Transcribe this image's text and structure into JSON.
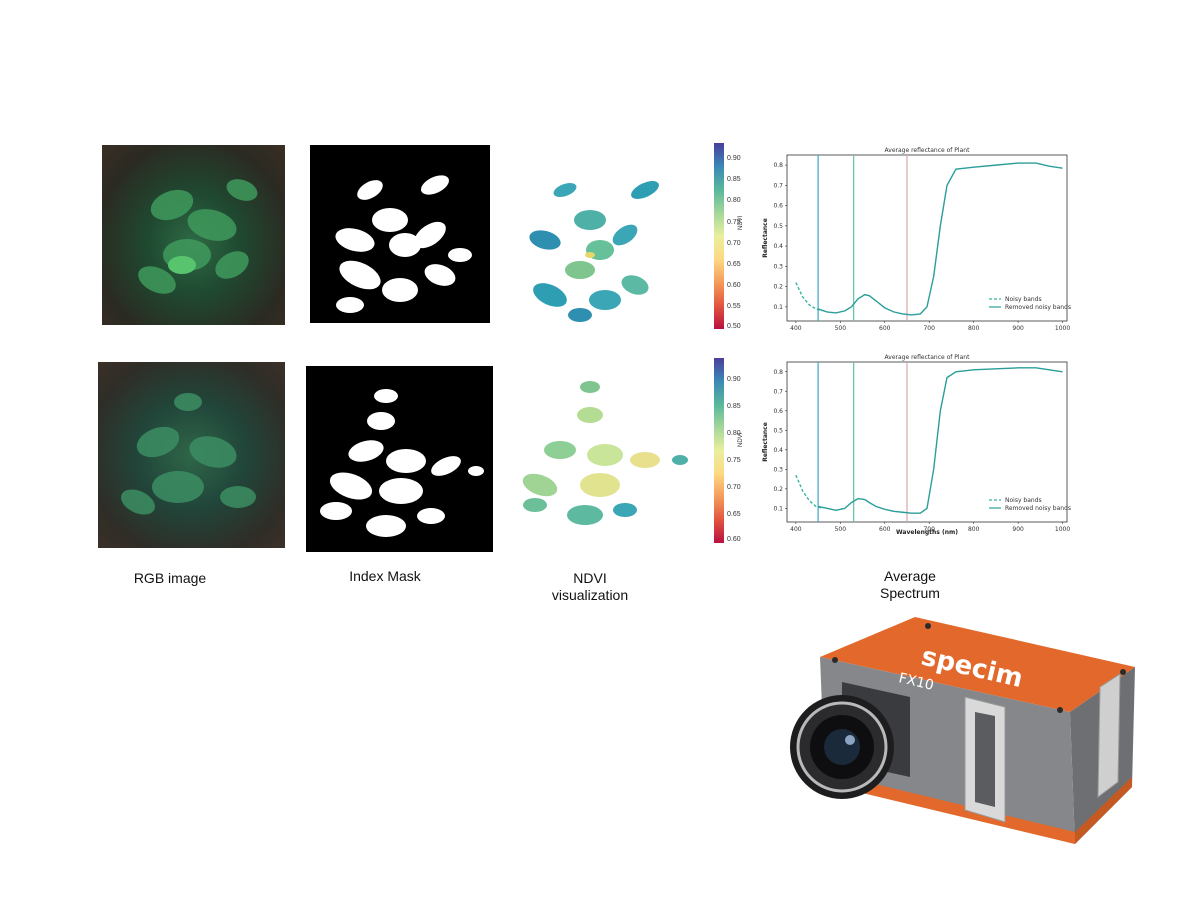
{
  "captions": {
    "rgb": "RGB image",
    "mask": "Index Mask",
    "ndvi_line1": "NDVI",
    "ndvi_line2": "visualization",
    "spectrum_line1": "Average",
    "spectrum_line2": "Spectrum"
  },
  "colorbars": [
    {
      "label": "NDVI",
      "ticks": [
        "0.90",
        "0.85",
        "0.80",
        "0.75",
        "0.70",
        "0.65",
        "0.60",
        "0.55",
        "0.50"
      ]
    },
    {
      "label": "NDVI",
      "ticks": [
        "0.90",
        "0.85",
        "0.80",
        "0.75",
        "0.70",
        "0.65",
        "0.60"
      ]
    }
  ],
  "chart_data": [
    {
      "type": "line",
      "title": "Average reflectance of Plant",
      "xlabel": "",
      "ylabel": "Reflectance",
      "xlim": [
        380,
        1010
      ],
      "ylim": [
        0.03,
        0.85
      ],
      "xticks": [
        "400",
        "500",
        "600",
        "700",
        "800",
        "900",
        "1000"
      ],
      "yticks": [
        "0.1",
        "0.2",
        "0.3",
        "0.4",
        "0.5",
        "0.6",
        "0.7",
        "0.8"
      ],
      "vlines": [
        450,
        530,
        650
      ],
      "legend": {
        "position": "bottom-right",
        "entries": [
          "Noisy bands",
          "Removed noisy bands"
        ]
      },
      "series": [
        {
          "name": "Noisy bands",
          "x": [
            400,
            415,
            430,
            445,
            460
          ],
          "y": [
            0.22,
            0.15,
            0.11,
            0.09,
            0.08
          ]
        },
        {
          "name": "Removed noisy bands",
          "x": [
            450,
            470,
            490,
            510,
            525,
            540,
            555,
            565,
            580,
            600,
            620,
            640,
            660,
            680,
            695,
            710,
            725,
            740,
            760,
            800,
            850,
            900,
            940,
            970,
            1000
          ],
          "y": [
            0.09,
            0.075,
            0.07,
            0.08,
            0.1,
            0.14,
            0.16,
            0.155,
            0.13,
            0.095,
            0.075,
            0.065,
            0.06,
            0.065,
            0.1,
            0.25,
            0.5,
            0.7,
            0.78,
            0.79,
            0.8,
            0.81,
            0.81,
            0.795,
            0.785
          ]
        }
      ]
    },
    {
      "type": "line",
      "title": "Average reflectance of Plant",
      "xlabel": "Wavelengths (nm)",
      "ylabel": "Reflectance",
      "xlim": [
        380,
        1010
      ],
      "ylim": [
        0.03,
        0.85
      ],
      "xticks": [
        "400",
        "500",
        "600",
        "700",
        "800",
        "900",
        "1000"
      ],
      "yticks": [
        "0.1",
        "0.2",
        "0.3",
        "0.4",
        "0.5",
        "0.6",
        "0.7",
        "0.8"
      ],
      "vlines": [
        450,
        530,
        650
      ],
      "legend": {
        "position": "bottom-right",
        "entries": [
          "Noisy bands",
          "Removed noisy bands"
        ]
      },
      "series": [
        {
          "name": "Noisy bands",
          "x": [
            400,
            415,
            430,
            445,
            460
          ],
          "y": [
            0.27,
            0.19,
            0.14,
            0.11,
            0.1
          ]
        },
        {
          "name": "Removed noisy bands",
          "x": [
            450,
            470,
            490,
            510,
            525,
            540,
            555,
            565,
            580,
            600,
            620,
            640,
            660,
            680,
            695,
            710,
            725,
            740,
            760,
            800,
            850,
            900,
            940,
            970,
            1000
          ],
          "y": [
            0.11,
            0.1,
            0.09,
            0.1,
            0.13,
            0.15,
            0.145,
            0.13,
            0.11,
            0.095,
            0.085,
            0.08,
            0.075,
            0.075,
            0.1,
            0.3,
            0.6,
            0.77,
            0.8,
            0.81,
            0.815,
            0.82,
            0.82,
            0.81,
            0.8
          ]
        }
      ]
    }
  ],
  "camera": {
    "brand": "specim",
    "model": "FX10"
  }
}
